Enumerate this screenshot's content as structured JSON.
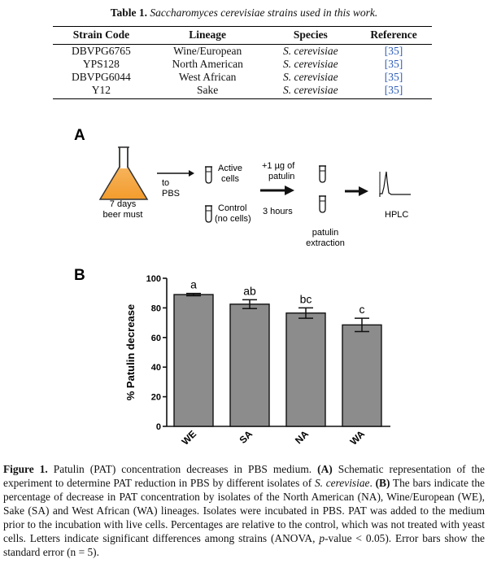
{
  "table": {
    "caption_label": "Table 1.",
    "caption_text": "Saccharomyces cerevisiae strains used in this work.",
    "headers": [
      "Strain Code",
      "Lineage",
      "Species",
      "Reference"
    ],
    "rows": [
      [
        "DBVPG6765",
        "Wine/European",
        "S. cerevisiae",
        "[35]"
      ],
      [
        "YPS128",
        "North American",
        "S. cerevisiae",
        "[35]"
      ],
      [
        "DBVPG6044",
        "West African",
        "S. cerevisiae",
        "[35]"
      ],
      [
        "Y12",
        "Sake",
        "S. cerevisiae",
        "[35]"
      ]
    ]
  },
  "panel_a": {
    "label": "A",
    "flask_caption_1": "7 days",
    "flask_caption_2": "beer must",
    "to_1": "to",
    "to_2": "PBS",
    "active_1": "Active",
    "active_2": "cells",
    "control_1": "Control",
    "control_2": "(no cells)",
    "add_1": "+1 µg of",
    "add_2": "patulin",
    "time": "3 hours",
    "extract_1": "patulin",
    "extract_2": "extraction",
    "hplc": "HPLC",
    "colors": {
      "flask_fill": "#f39c2c",
      "flask_fill_light": "#f8c27a"
    }
  },
  "panel_b": {
    "label": "B"
  },
  "chart_data": {
    "type": "bar",
    "categories": [
      "WE",
      "SA",
      "NA",
      "WA"
    ],
    "values": [
      89,
      82.5,
      76.5,
      68.5
    ],
    "errors": [
      0.8,
      3,
      3.5,
      4.5
    ],
    "letters": [
      "a",
      "ab",
      "bc",
      "c"
    ],
    "ylabel": "% Patulin decrease",
    "xlabel": "",
    "ylim": [
      0,
      100
    ],
    "yticks": [
      0,
      20,
      40,
      60,
      80,
      100
    ],
    "ytick_labels": [
      "0",
      "20",
      "40",
      "60",
      "80",
      "100"
    ],
    "bar_color": "#8c8c8c",
    "grid": false
  },
  "figure_caption": {
    "label": "Figure 1.",
    "text_1": " Patulin (PAT) concentration decreases in PBS medium. ",
    "a_label": "(A)",
    "text_2": " Schematic representation of the experiment to determine PAT reduction in PBS by different isolates of ",
    "species": "S. cerevisiae",
    "text_3": ". ",
    "b_label": "(B)",
    "text_4": " The bars indicate the percentage of decrease in PAT concentration by isolates of the North American (NA), Wine/European (WE), Sake (SA) and West African (WA) lineages. Isolates were incubated in PBS. PAT was added to the medium prior to the incubation with live cells. Percentages are relative to the control, which was not treated with yeast cells. Letters indicate significant differences among strains (ANOVA, ",
    "p": "p",
    "text_5": "-value < 0.05). Error bars show the standard error (n = 5)."
  }
}
